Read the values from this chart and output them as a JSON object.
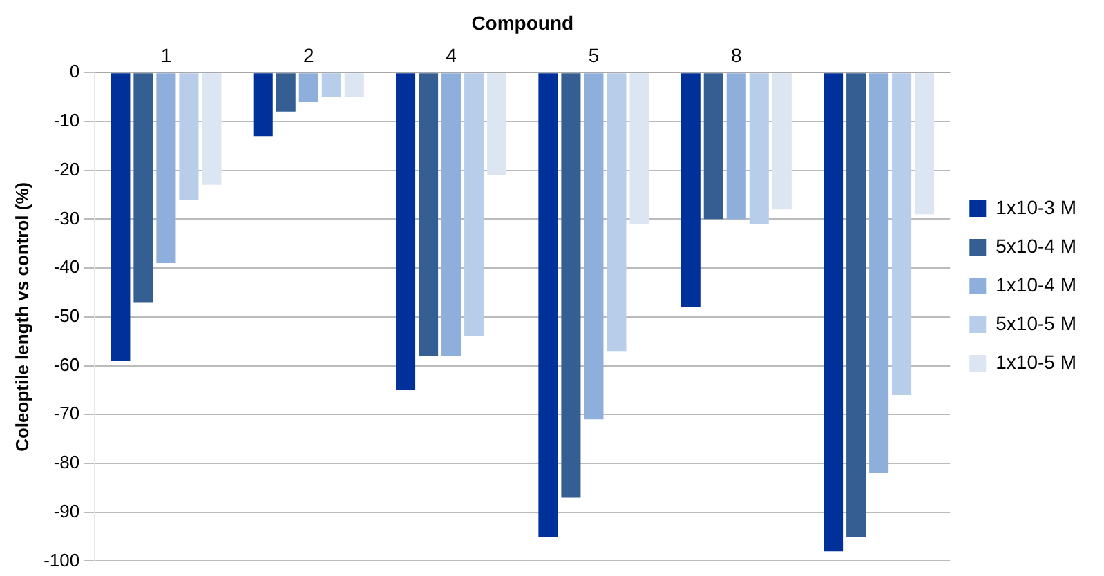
{
  "chart_data": {
    "type": "bar",
    "xlabel": "Compound",
    "ylabel": "Coleoptile length vs control (%)",
    "categories": [
      "1",
      "2",
      "4",
      "5",
      "8",
      null
    ],
    "series": [
      {
        "name": "1x10-3 M",
        "color": "#00309a",
        "values": [
          -59,
          -13,
          -65,
          -95,
          -48,
          -98
        ]
      },
      {
        "name": "5x10-4 M",
        "color": "#355f93",
        "values": [
          -47,
          -8,
          -58,
          -87,
          -30,
          -95
        ]
      },
      {
        "name": "1x10-4 M",
        "color": "#8eaedb",
        "values": [
          -39,
          -6,
          -58,
          -71,
          -30,
          -82
        ]
      },
      {
        "name": "5x10-5 M",
        "color": "#b8cdea",
        "values": [
          -26,
          -5,
          -54,
          -57,
          -31,
          -66
        ]
      },
      {
        "name": "1x10-5 M",
        "color": "#dce6f3",
        "values": [
          -23,
          -5,
          -21,
          -31,
          -28,
          -29
        ]
      }
    ],
    "ylim": [
      -100,
      0
    ],
    "yticks": [
      -100,
      -90,
      -80,
      -70,
      -60,
      -50,
      -40,
      -30,
      -20,
      -10,
      0
    ],
    "grid": "y",
    "legend": "right"
  }
}
